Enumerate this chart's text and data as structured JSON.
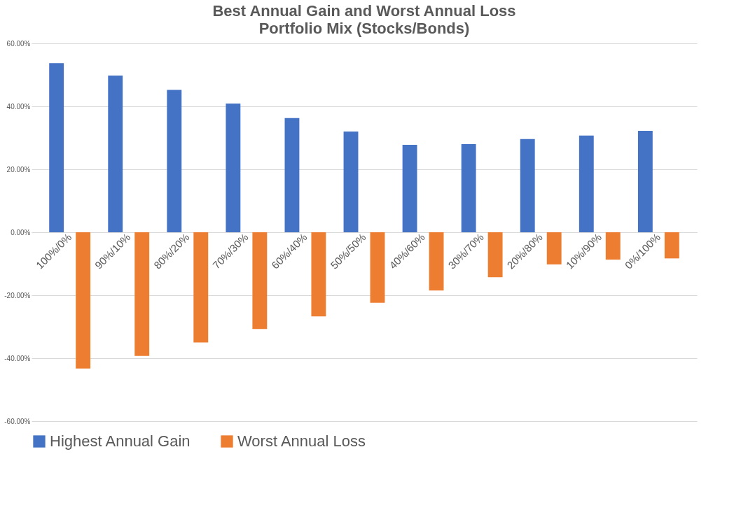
{
  "chart_data": {
    "type": "bar",
    "title": "Best Annual Gain and Worst Annual Loss",
    "subtitle": "Portfolio Mix (Stocks/Bonds)",
    "categories": [
      "100%/0%",
      "90%/10%",
      "80%/20%",
      "70%/30%",
      "60%/40%",
      "50%/50%",
      "40%/60%",
      "30%/70%",
      "20%/80%",
      "10%/90%",
      "0%/100%"
    ],
    "series": [
      {
        "name": "Highest Annual Gain",
        "color": "#4472c4",
        "values": [
          53.7,
          49.8,
          45.2,
          40.9,
          36.3,
          32.0,
          27.8,
          28.0,
          29.6,
          30.7,
          32.2
        ]
      },
      {
        "name": "Worst Annual Loss",
        "color": "#ed7d31",
        "values": [
          -43.3,
          -39.3,
          -35.0,
          -30.7,
          -26.7,
          -22.4,
          -18.5,
          -14.3,
          -10.2,
          -8.7,
          -8.3
        ]
      }
    ],
    "ylim": [
      -60,
      60
    ],
    "yticks": [
      {
        "value": -60,
        "label": "-60.00%"
      },
      {
        "value": -40,
        "label": "-40.00%"
      },
      {
        "value": -20,
        "label": "-20.00%"
      },
      {
        "value": 0,
        "label": "0.00%"
      },
      {
        "value": 20,
        "label": "20.00%"
      },
      {
        "value": 40,
        "label": "40.00%"
      },
      {
        "value": 60,
        "label": "60.00%"
      }
    ],
    "grid": "y",
    "legend": "bottom"
  }
}
